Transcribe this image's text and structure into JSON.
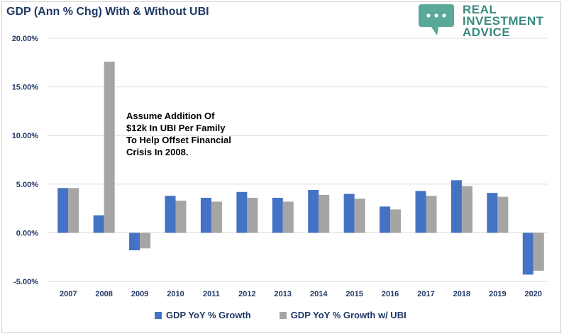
{
  "chart_data": {
    "type": "bar",
    "title": "GDP (Ann % Chg) With & Without UBI",
    "categories": [
      "2007",
      "2008",
      "2009",
      "2010",
      "2011",
      "2012",
      "2013",
      "2014",
      "2015",
      "2016",
      "2017",
      "2018",
      "2019",
      "2020"
    ],
    "series": [
      {
        "name": "GDP YoY % Growth",
        "color": "#4472c4",
        "values": [
          4.6,
          1.8,
          -1.8,
          3.8,
          3.6,
          4.2,
          3.6,
          4.4,
          4.0,
          2.7,
          4.3,
          5.4,
          4.1,
          -4.3
        ]
      },
      {
        "name": "GDP YoY % Growth w/ UBI",
        "color": "#a5a5a5",
        "values": [
          4.6,
          17.6,
          -1.6,
          3.3,
          3.2,
          3.6,
          3.2,
          3.9,
          3.5,
          2.4,
          3.8,
          4.8,
          3.7,
          -3.9
        ]
      }
    ],
    "ylim": [
      -5,
      20
    ],
    "yticks": [
      "-5.00%",
      "0.00%",
      "5.00%",
      "10.00%",
      "15.00%",
      "20.00%"
    ],
    "grid": true,
    "legend_position": "bottom",
    "annotation": [
      "Assume Addition Of",
      "$12k In UBI Per Family",
      "To Help Offset Financial",
      "Crisis In 2008."
    ]
  },
  "logo": {
    "line1": "REAL",
    "line2": "INVESTMENT",
    "line3": "ADVICE",
    "color": "#3a8a7e"
  }
}
